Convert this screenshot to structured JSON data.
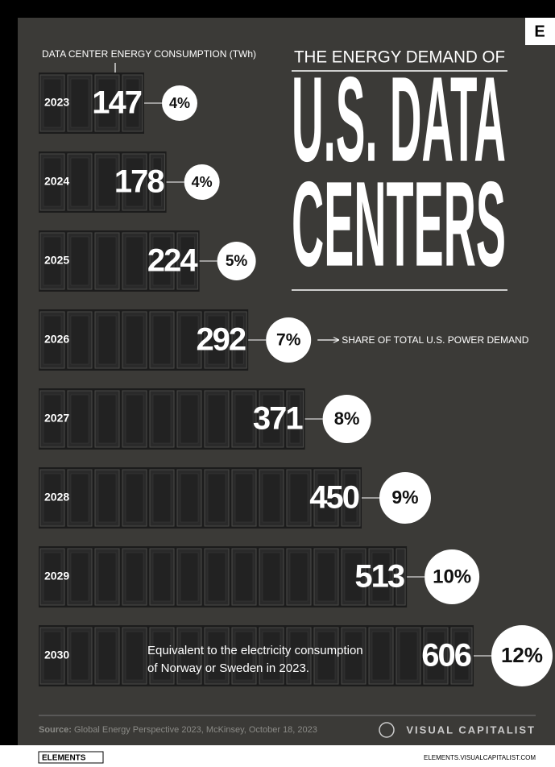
{
  "chart_data": {
    "type": "bar",
    "orientation": "horizontal",
    "title": [
      "THE ENERGY DEMAND OF",
      "U.S. DATA",
      "CENTERS"
    ],
    "categories": [
      "2023",
      "2024",
      "2025",
      "2026",
      "2027",
      "2028",
      "2029",
      "2030"
    ],
    "series": [
      {
        "name": "DATA CENTER ENERGY CONSUMPTION (TWh)",
        "color": "#1c1c1c",
        "values": [
          147,
          178,
          224,
          292,
          371,
          450,
          513,
          606
        ]
      },
      {
        "name": "SHARE OF TOTAL U.S. POWER DEMAND",
        "color": "#ffffff",
        "values": [
          4,
          4,
          5,
          7,
          8,
          9,
          10,
          12
        ],
        "value_labels": [
          "4%",
          "4%",
          "5%",
          "7%",
          "8%",
          "9%",
          "10%",
          "12%"
        ]
      }
    ],
    "annotation": [
      "Equivalent to the electricity consumption",
      "of Norway or Sweden in 2023."
    ],
    "source_label": "Source:",
    "source": "Global Energy Perspective 2023, McKinsey, October 18, 2023",
    "brand": "VISUAL CAPITALIST",
    "corner_logo": "E",
    "footer_logo": "ELEMENTS",
    "footer_url": "ELEMENTS.VISUALCAPITALIST.COM"
  }
}
